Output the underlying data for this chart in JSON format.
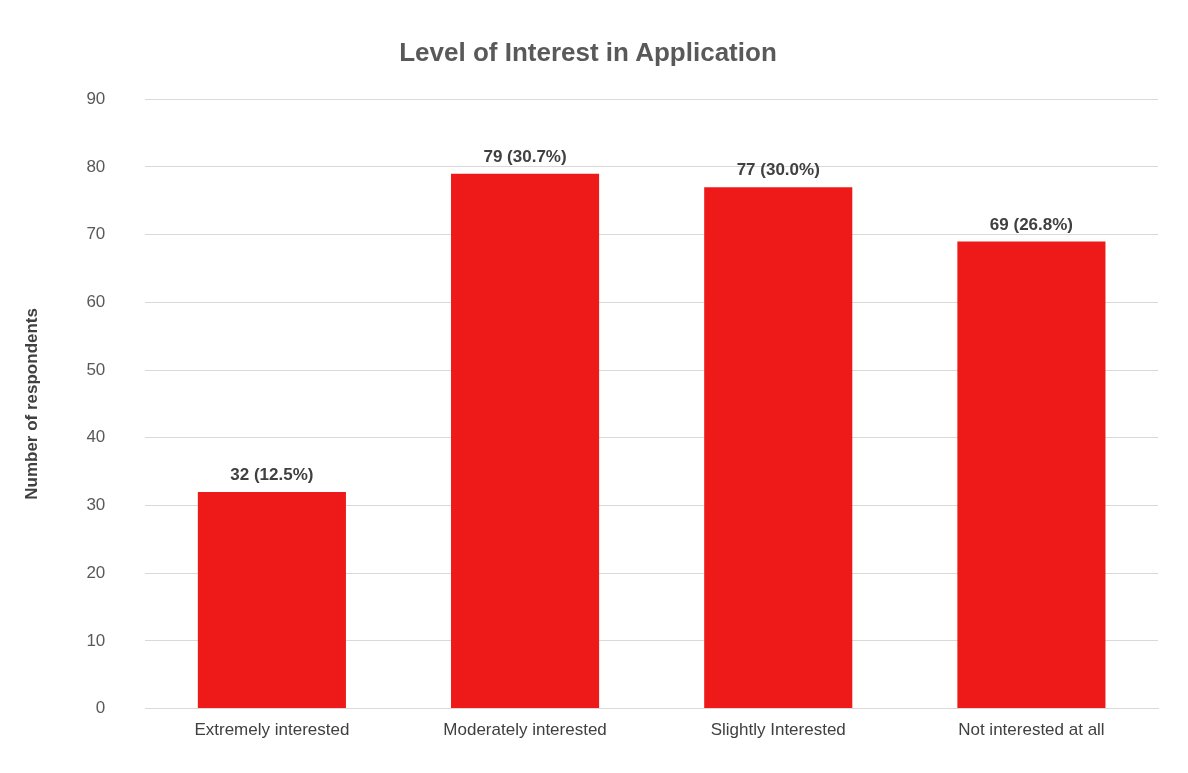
{
  "chart_data": {
    "type": "bar",
    "title": "Level of Interest in Application",
    "ylabel": "Number of respondents",
    "categories": [
      "Extremely interested",
      "Moderately interested",
      "Slightly Interested",
      "Not interested at all"
    ],
    "values": [
      32,
      79,
      77,
      69
    ],
    "color": "#ee1a1a",
    "value_labels": [
      "32 (12.5%)",
      "79 (30.7%)",
      "77 (30.0%)",
      "69 (26.8%)"
    ],
    "ylim": [
      0,
      90
    ],
    "yticks": [
      0,
      10,
      20,
      30,
      40,
      50,
      60,
      70,
      80,
      90
    ],
    "grid": "y",
    "legend": false
  }
}
